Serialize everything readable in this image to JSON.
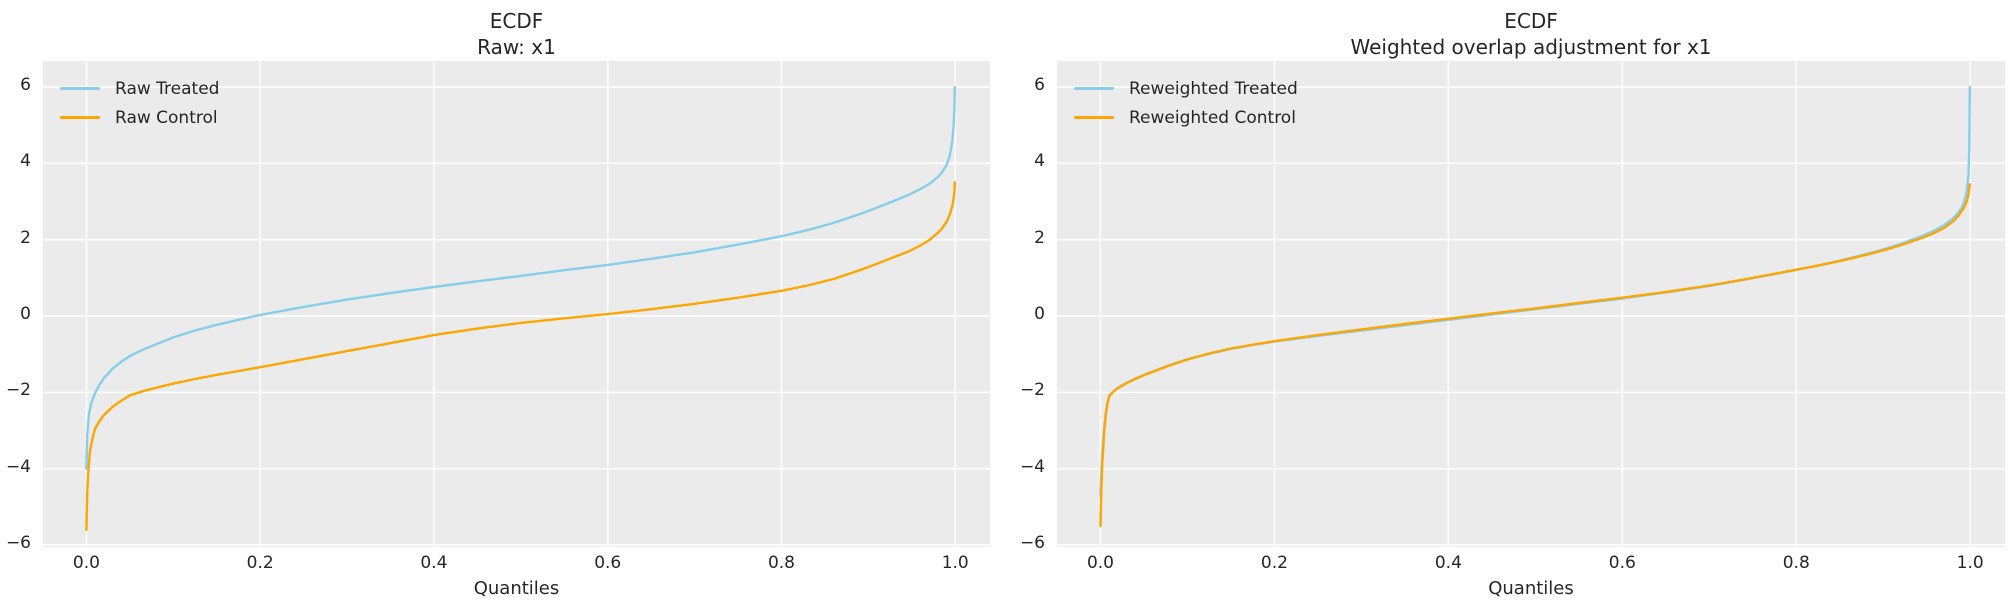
{
  "figure": {
    "background": "#ffffff",
    "axes_background": "#ebebeb",
    "grid_color": "#ffffff",
    "text_color": "#262626",
    "treated_color": "#87ceeb",
    "control_color": "#ffa500"
  },
  "chart_data": [
    {
      "type": "line",
      "title": "ECDF",
      "subtitle": "Raw: x1",
      "xlabel": "Quantiles",
      "xlim": [
        -0.05,
        1.04
      ],
      "ylim": [
        -6.05,
        6.68
      ],
      "grid": true,
      "legend_position": "upper left",
      "xticks": [
        0.0,
        0.2,
        0.4,
        0.6,
        0.8,
        1.0
      ],
      "xtick_labels": [
        "0.0",
        "0.2",
        "0.4",
        "0.6",
        "0.8",
        "1.0"
      ],
      "yticks": [
        6,
        4,
        2,
        0,
        -2,
        -4,
        -6
      ],
      "ytick_labels": [
        "6",
        "4",
        "2",
        "0",
        "−2",
        "−4",
        "−6"
      ],
      "series": [
        {
          "name": "Raw Treated",
          "color": "#87ceeb",
          "points": [
            [
              0.0,
              -4.0
            ],
            [
              0.001,
              -3.1
            ],
            [
              0.003,
              -2.55
            ],
            [
              0.006,
              -2.25
            ],
            [
              0.01,
              -2.02
            ],
            [
              0.015,
              -1.8
            ],
            [
              0.02,
              -1.63
            ],
            [
              0.03,
              -1.38
            ],
            [
              0.04,
              -1.2
            ],
            [
              0.05,
              -1.05
            ],
            [
              0.065,
              -0.88
            ],
            [
              0.08,
              -0.74
            ],
            [
              0.1,
              -0.56
            ],
            [
              0.125,
              -0.38
            ],
            [
              0.15,
              -0.23
            ],
            [
              0.175,
              -0.1
            ],
            [
              0.2,
              0.03
            ],
            [
              0.25,
              0.24
            ],
            [
              0.3,
              0.43
            ],
            [
              0.35,
              0.6
            ],
            [
              0.4,
              0.76
            ],
            [
              0.45,
              0.91
            ],
            [
              0.5,
              1.05
            ],
            [
              0.55,
              1.2
            ],
            [
              0.6,
              1.34
            ],
            [
              0.65,
              1.5
            ],
            [
              0.7,
              1.67
            ],
            [
              0.75,
              1.87
            ],
            [
              0.8,
              2.09
            ],
            [
              0.83,
              2.25
            ],
            [
              0.86,
              2.44
            ],
            [
              0.89,
              2.67
            ],
            [
              0.91,
              2.84
            ],
            [
              0.93,
              3.02
            ],
            [
              0.945,
              3.16
            ],
            [
              0.96,
              3.33
            ],
            [
              0.97,
              3.46
            ],
            [
              0.98,
              3.64
            ],
            [
              0.985,
              3.77
            ],
            [
              0.99,
              3.95
            ],
            [
              0.993,
              4.15
            ],
            [
              0.995,
              4.35
            ],
            [
              0.997,
              4.65
            ],
            [
              0.998,
              4.95
            ],
            [
              0.999,
              5.45
            ],
            [
              0.9995,
              6.0
            ]
          ]
        },
        {
          "name": "Raw Control",
          "color": "#ffa500",
          "points": [
            [
              0.0,
              -5.6
            ],
            [
              0.001,
              -4.6
            ],
            [
              0.002,
              -4.1
            ],
            [
              0.004,
              -3.55
            ],
            [
              0.007,
              -3.2
            ],
            [
              0.01,
              -2.95
            ],
            [
              0.015,
              -2.75
            ],
            [
              0.02,
              -2.6
            ],
            [
              0.03,
              -2.38
            ],
            [
              0.04,
              -2.22
            ],
            [
              0.05,
              -2.08
            ],
            [
              0.065,
              -1.97
            ],
            [
              0.08,
              -1.88
            ],
            [
              0.1,
              -1.77
            ],
            [
              0.125,
              -1.65
            ],
            [
              0.15,
              -1.54
            ],
            [
              0.175,
              -1.44
            ],
            [
              0.2,
              -1.34
            ],
            [
              0.25,
              -1.13
            ],
            [
              0.3,
              -0.92
            ],
            [
              0.35,
              -0.71
            ],
            [
              0.4,
              -0.5
            ],
            [
              0.45,
              -0.33
            ],
            [
              0.5,
              -0.18
            ],
            [
              0.55,
              -0.06
            ],
            [
              0.6,
              0.05
            ],
            [
              0.65,
              0.18
            ],
            [
              0.7,
              0.32
            ],
            [
              0.75,
              0.48
            ],
            [
              0.8,
              0.66
            ],
            [
              0.83,
              0.8
            ],
            [
              0.86,
              0.97
            ],
            [
              0.89,
              1.2
            ],
            [
              0.91,
              1.37
            ],
            [
              0.93,
              1.55
            ],
            [
              0.945,
              1.68
            ],
            [
              0.96,
              1.85
            ],
            [
              0.97,
              1.99
            ],
            [
              0.98,
              2.18
            ],
            [
              0.985,
              2.3
            ],
            [
              0.99,
              2.47
            ],
            [
              0.993,
              2.62
            ],
            [
              0.995,
              2.75
            ],
            [
              0.997,
              2.92
            ],
            [
              0.998,
              3.05
            ],
            [
              0.999,
              3.25
            ],
            [
              0.9995,
              3.5
            ]
          ]
        }
      ]
    },
    {
      "type": "line",
      "title": "ECDF",
      "subtitle": "Weighted overlap adjustment for x1",
      "xlabel": "Quantiles",
      "xlim": [
        -0.05,
        1.04
      ],
      "ylim": [
        -6.05,
        6.68
      ],
      "grid": true,
      "legend_position": "upper left",
      "xticks": [
        0.0,
        0.2,
        0.4,
        0.6,
        0.8,
        1.0
      ],
      "xtick_labels": [
        "0.0",
        "0.2",
        "0.4",
        "0.6",
        "0.8",
        "1.0"
      ],
      "yticks": [
        6,
        4,
        2,
        0,
        -2,
        -4,
        -6
      ],
      "ytick_labels": [
        "6",
        "4",
        "2",
        "0",
        "−2",
        "−4",
        "−6"
      ],
      "series": [
        {
          "name": "Reweighted Treated",
          "color": "#87ceeb",
          "points": [
            [
              0.0,
              -4.7
            ],
            [
              0.001,
              -4.1
            ],
            [
              0.002,
              -3.6
            ],
            [
              0.004,
              -3.0
            ],
            [
              0.006,
              -2.55
            ],
            [
              0.008,
              -2.28
            ],
            [
              0.01,
              -2.09
            ],
            [
              0.015,
              -1.97
            ],
            [
              0.02,
              -1.88
            ],
            [
              0.03,
              -1.75
            ],
            [
              0.04,
              -1.64
            ],
            [
              0.05,
              -1.54
            ],
            [
              0.065,
              -1.41
            ],
            [
              0.08,
              -1.28
            ],
            [
              0.1,
              -1.13
            ],
            [
              0.125,
              -0.99
            ],
            [
              0.15,
              -0.86
            ],
            [
              0.175,
              -0.76
            ],
            [
              0.2,
              -0.67
            ],
            [
              0.25,
              -0.52
            ],
            [
              0.3,
              -0.38
            ],
            [
              0.35,
              -0.24
            ],
            [
              0.4,
              -0.1
            ],
            [
              0.45,
              0.04
            ],
            [
              0.5,
              0.18
            ],
            [
              0.55,
              0.32
            ],
            [
              0.6,
              0.46
            ],
            [
              0.65,
              0.62
            ],
            [
              0.7,
              0.79
            ],
            [
              0.74,
              0.95
            ],
            [
              0.78,
              1.12
            ],
            [
              0.82,
              1.3
            ],
            [
              0.85,
              1.45
            ],
            [
              0.88,
              1.62
            ],
            [
              0.905,
              1.78
            ],
            [
              0.925,
              1.93
            ],
            [
              0.945,
              2.1
            ],
            [
              0.96,
              2.25
            ],
            [
              0.97,
              2.38
            ],
            [
              0.98,
              2.55
            ],
            [
              0.986,
              2.7
            ],
            [
              0.99,
              2.83
            ],
            [
              0.993,
              2.98
            ],
            [
              0.996,
              3.25
            ],
            [
              0.998,
              3.7
            ],
            [
              0.999,
              4.4
            ],
            [
              0.9995,
              6.0
            ]
          ]
        },
        {
          "name": "Reweighted Control",
          "color": "#ffa500",
          "points": [
            [
              0.0,
              -5.5
            ],
            [
              0.001,
              -4.5
            ],
            [
              0.002,
              -3.9
            ],
            [
              0.004,
              -3.1
            ],
            [
              0.006,
              -2.6
            ],
            [
              0.008,
              -2.3
            ],
            [
              0.01,
              -2.1
            ],
            [
              0.015,
              -1.98
            ],
            [
              0.02,
              -1.89
            ],
            [
              0.03,
              -1.76
            ],
            [
              0.04,
              -1.65
            ],
            [
              0.05,
              -1.55
            ],
            [
              0.065,
              -1.42
            ],
            [
              0.08,
              -1.29
            ],
            [
              0.1,
              -1.14
            ],
            [
              0.125,
              -0.98
            ],
            [
              0.15,
              -0.85
            ],
            [
              0.175,
              -0.75
            ],
            [
              0.2,
              -0.66
            ],
            [
              0.25,
              -0.5
            ],
            [
              0.3,
              -0.35
            ],
            [
              0.35,
              -0.21
            ],
            [
              0.4,
              -0.07
            ],
            [
              0.45,
              0.07
            ],
            [
              0.5,
              0.2
            ],
            [
              0.55,
              0.34
            ],
            [
              0.6,
              0.48
            ],
            [
              0.65,
              0.63
            ],
            [
              0.7,
              0.8
            ],
            [
              0.74,
              0.96
            ],
            [
              0.78,
              1.13
            ],
            [
              0.82,
              1.3
            ],
            [
              0.85,
              1.44
            ],
            [
              0.88,
              1.6
            ],
            [
              0.905,
              1.75
            ],
            [
              0.925,
              1.89
            ],
            [
              0.945,
              2.05
            ],
            [
              0.96,
              2.19
            ],
            [
              0.97,
              2.31
            ],
            [
              0.98,
              2.47
            ],
            [
              0.986,
              2.62
            ],
            [
              0.99,
              2.74
            ],
            [
              0.993,
              2.85
            ],
            [
              0.996,
              3.0
            ],
            [
              0.998,
              3.18
            ],
            [
              0.999,
              3.35
            ],
            [
              0.9995,
              3.45
            ]
          ]
        }
      ]
    }
  ]
}
